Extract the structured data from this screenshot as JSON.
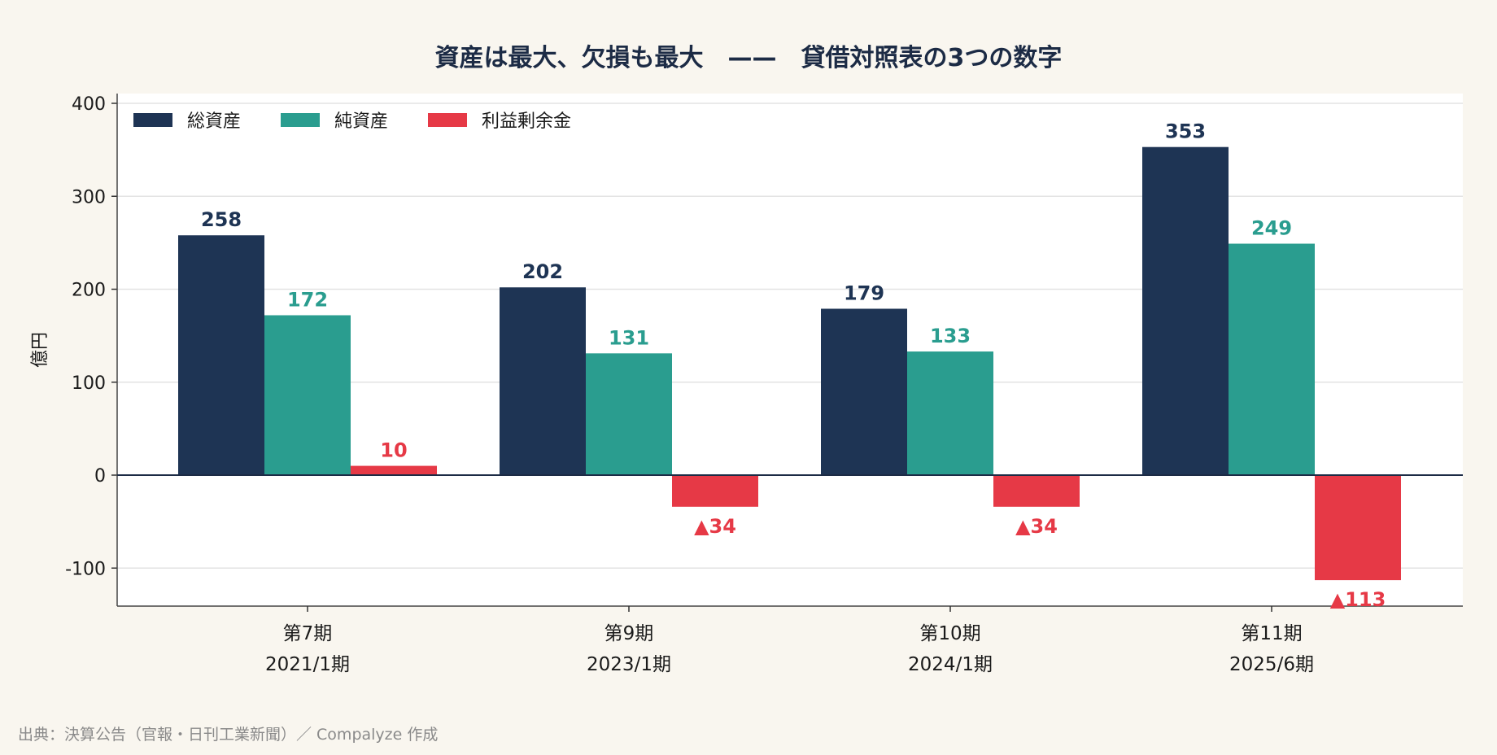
{
  "chart_data": {
    "type": "bar",
    "title": "資産は最大、欠損も最大　——　貸借対照表の3つの数字",
    "ylabel": "億円",
    "xlabel": "",
    "ylim": [
      -140,
      410
    ],
    "yticks": [
      400,
      300,
      200,
      100,
      0,
      -100
    ],
    "grid": true,
    "legend_position": "top-left",
    "categories": [
      [
        "第7期",
        "2021/1期"
      ],
      [
        "第9期",
        "2023/1期"
      ],
      [
        "第10期",
        "2024/1期"
      ],
      [
        "第11期",
        "2025/6期"
      ]
    ],
    "series": [
      {
        "name": "総資産",
        "color": "#1e3454",
        "values": [
          258,
          202,
          179,
          353
        ],
        "labels": [
          "258",
          "202",
          "179",
          "353"
        ]
      },
      {
        "name": "純資産",
        "color": "#2a9d8f",
        "values": [
          172,
          131,
          133,
          249
        ],
        "labels": [
          "172",
          "131",
          "133",
          "249"
        ]
      },
      {
        "name": "利益剰余金",
        "color": "#e63946",
        "values": [
          10,
          -34,
          -34,
          -113
        ],
        "labels": [
          "10",
          "▲34",
          "▲34",
          "▲113"
        ]
      }
    ]
  },
  "source": "出典：決算公告（官報・日刊工業新聞）／ Compalyze 作成"
}
